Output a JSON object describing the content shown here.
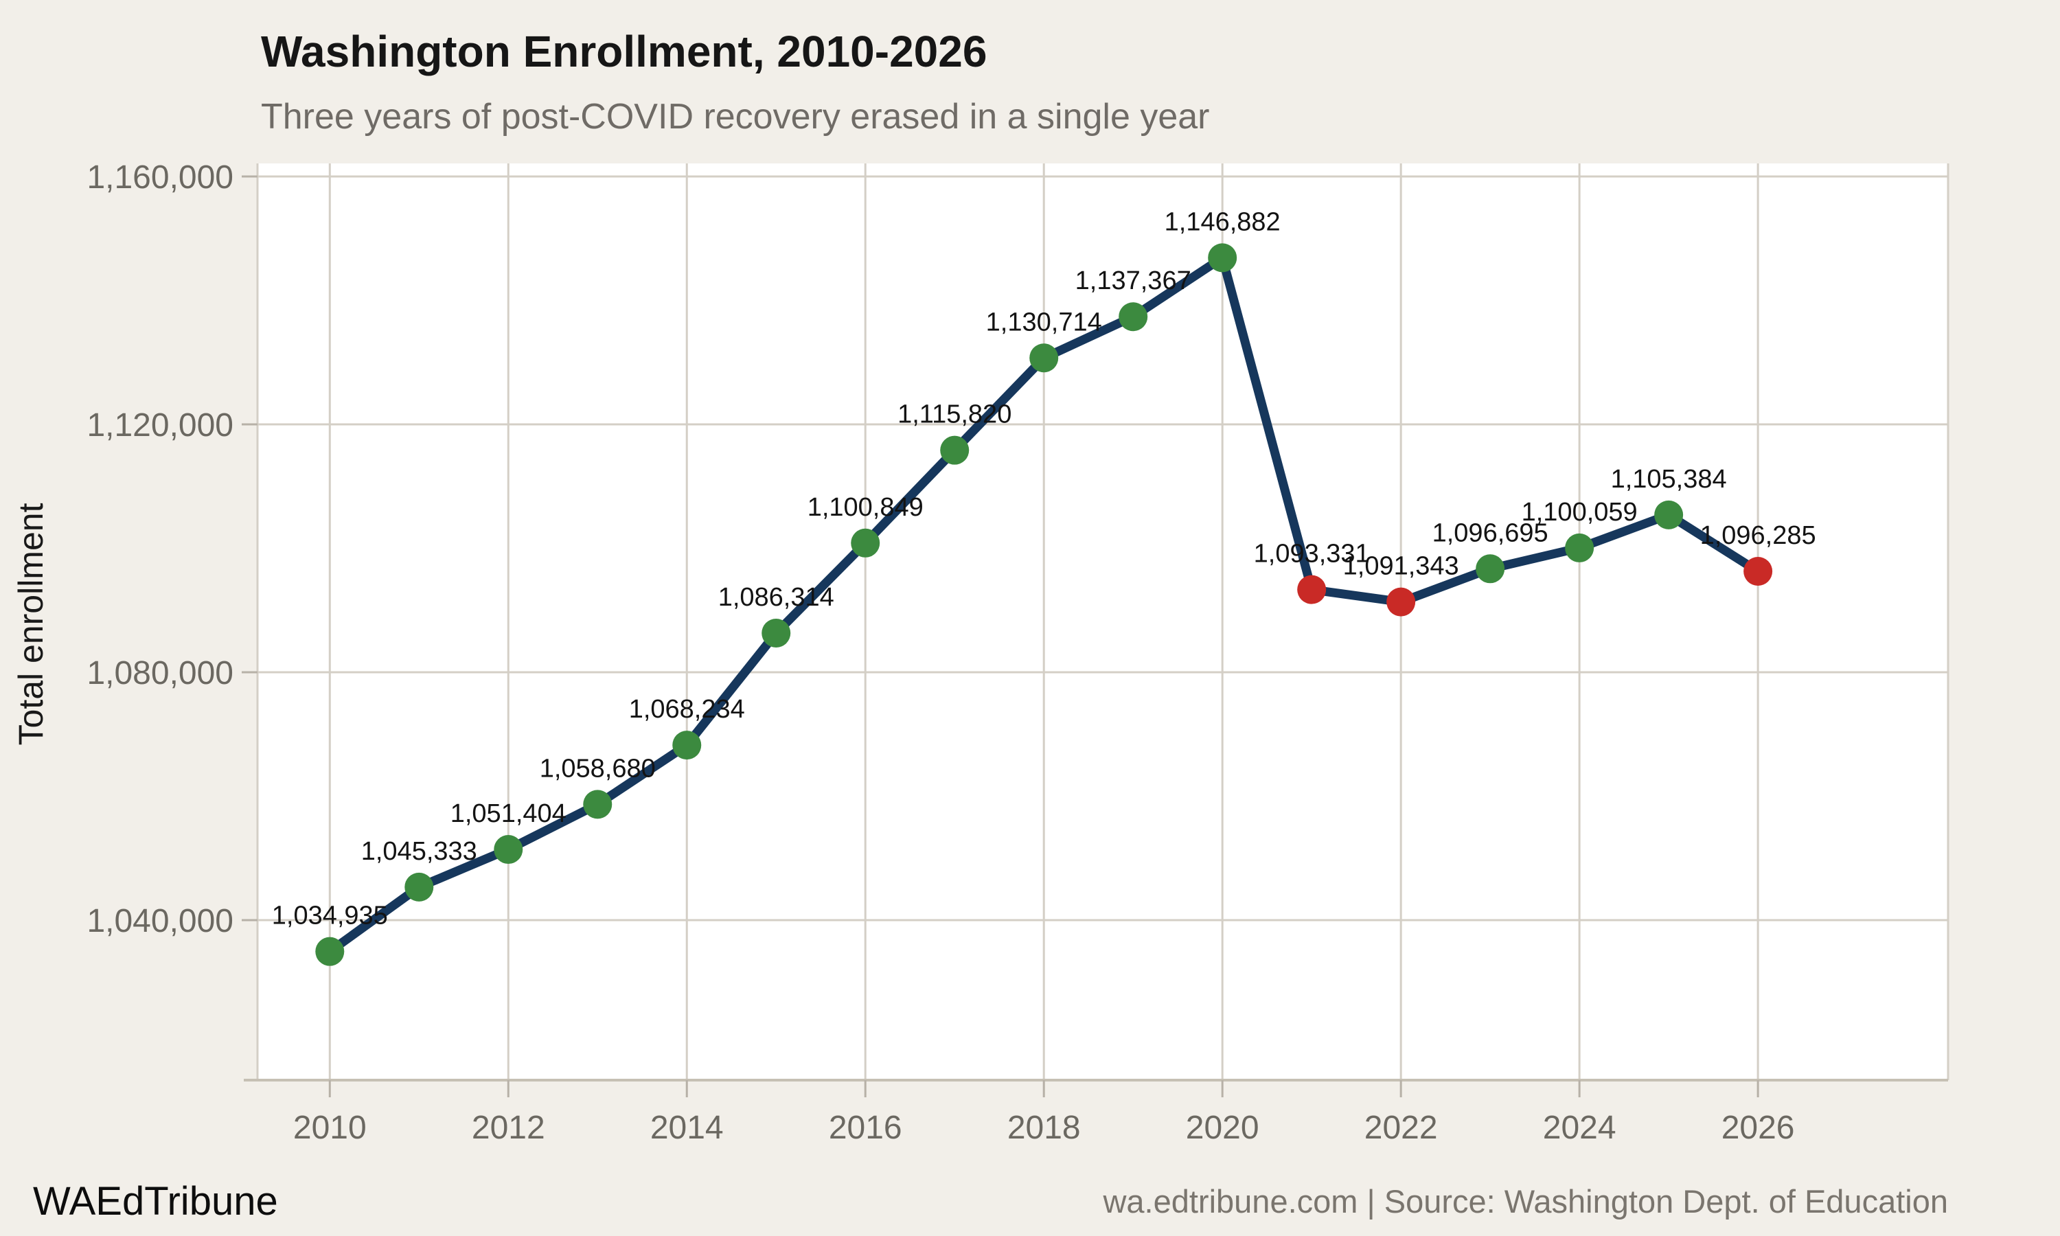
{
  "header": {
    "title": "Washington Enrollment, 2010-2026",
    "subtitle": "Three years of post-COVID recovery erased in a single year"
  },
  "footer": {
    "brand": "WAEdTribune",
    "source": "wa.edtribune.com | Source: Washington Dept. of Education"
  },
  "chart_data": {
    "type": "line",
    "title": "Washington Enrollment, 2010-2026",
    "subtitle": "Three years of post-COVID recovery erased in a single year",
    "xlabel": "",
    "ylabel": "Total enrollment",
    "x": [
      2010,
      2011,
      2012,
      2013,
      2014,
      2015,
      2016,
      2017,
      2018,
      2019,
      2020,
      2021,
      2022,
      2023,
      2024,
      2025,
      2026
    ],
    "values": [
      1034935,
      1045333,
      1051404,
      1058680,
      1068234,
      1086314,
      1100849,
      1115820,
      1130714,
      1137367,
      1146882,
      1093331,
      1091343,
      1096695,
      1100059,
      1105384,
      1096285
    ],
    "point_labels": [
      "1,034,935",
      "1,045,333",
      "1,051,404",
      "1,058,680",
      "1,068,234",
      "1,086,314",
      "1,100,849",
      "1,115,820",
      "1,130,714",
      "1,137,367",
      "1,146,882",
      "1,093,331",
      "1,091,343",
      "1,096,695",
      "1,100,059",
      "1,105,384",
      "1,096,285"
    ],
    "point_colors": [
      "green",
      "green",
      "green",
      "green",
      "green",
      "green",
      "green",
      "green",
      "green",
      "green",
      "green",
      "red",
      "red",
      "green",
      "green",
      "green",
      "red"
    ],
    "yticks": [
      {
        "value": 1040000,
        "label": "1,040,000"
      },
      {
        "value": 1080000,
        "label": "1,080,000"
      },
      {
        "value": 1120000,
        "label": "1,120,000"
      },
      {
        "value": 1160000,
        "label": "1,160,000"
      }
    ],
    "xticks": [
      {
        "value": 2010,
        "label": "2010"
      },
      {
        "value": 2012,
        "label": "2012"
      },
      {
        "value": 2014,
        "label": "2014"
      },
      {
        "value": 2016,
        "label": "2016"
      },
      {
        "value": 2018,
        "label": "2018"
      },
      {
        "value": 2020,
        "label": "2020"
      },
      {
        "value": 2022,
        "label": "2022"
      },
      {
        "value": 2024,
        "label": "2024"
      },
      {
        "value": 2026,
        "label": "2026"
      }
    ],
    "xlim": [
      2009.19,
      2028.13
    ],
    "ylim": [
      1014180,
      1162100
    ],
    "grid": true,
    "legend": "none",
    "colors": {
      "line": "#16375c",
      "growth_point": "#3c8a3f",
      "decline_point": "#c92a26",
      "grid": "#d4cfc6",
      "axis": "#c6c0b4",
      "tick": "#b7b1a7",
      "tick_label": "#6b6861",
      "data_label": "#131313",
      "plot_bg": "#ffffff",
      "page_bg": "#f2efe9"
    }
  }
}
